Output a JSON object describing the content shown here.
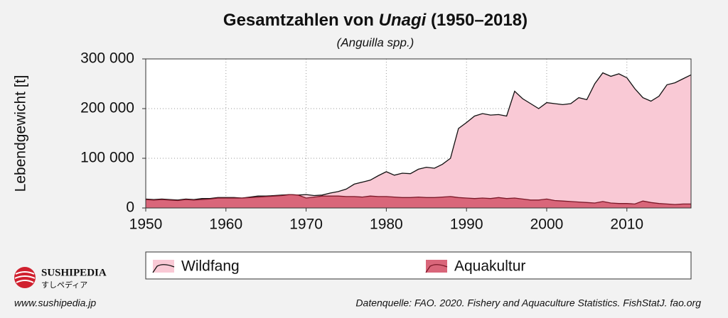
{
  "chart_data": {
    "type": "area",
    "title": [
      "Gesamtzahlen von ",
      "Unagi",
      " (1950–2018)"
    ],
    "subtitle": "(Anguilla spp.)",
    "ylabel": "Lebendgewicht [t]",
    "x": [
      1950,
      1951,
      1952,
      1953,
      1954,
      1955,
      1956,
      1957,
      1958,
      1959,
      1960,
      1961,
      1962,
      1963,
      1964,
      1965,
      1966,
      1967,
      1968,
      1969,
      1970,
      1971,
      1972,
      1973,
      1974,
      1975,
      1976,
      1977,
      1978,
      1979,
      1980,
      1981,
      1982,
      1983,
      1984,
      1985,
      1986,
      1987,
      1988,
      1989,
      1990,
      1991,
      1992,
      1993,
      1994,
      1995,
      1996,
      1997,
      1998,
      1999,
      2000,
      2001,
      2002,
      2003,
      2004,
      2005,
      2006,
      2007,
      2008,
      2009,
      2010,
      2011,
      2012,
      2013,
      2014,
      2015,
      2016,
      2017,
      2018
    ],
    "series": [
      {
        "name": "Wildfang",
        "color": "#f9c9d5",
        "line_color": "#111111",
        "values": [
          18000,
          17000,
          18000,
          17000,
          16000,
          18000,
          17000,
          19000,
          19000,
          21000,
          21000,
          21000,
          20000,
          22000,
          24000,
          24000,
          25000,
          26000,
          27000,
          26000,
          27000,
          25000,
          26000,
          30000,
          33000,
          38000,
          48000,
          52000,
          56000,
          65000,
          73000,
          66000,
          70000,
          69000,
          78000,
          82000,
          80000,
          88000,
          100000,
          160000,
          172000,
          185000,
          190000,
          187000,
          188000,
          185000,
          235000,
          220000,
          210000,
          200000,
          212000,
          210000,
          208000,
          210000,
          222000,
          218000,
          250000,
          272000,
          265000,
          270000,
          262000,
          240000,
          222000,
          215000,
          225000,
          248000,
          252000,
          260000,
          268000
        ]
      },
      {
        "name": "Aquakultur",
        "color": "#d9667a",
        "line_color": "#7a1828",
        "values": [
          17000,
          16000,
          17000,
          16000,
          15000,
          17000,
          16000,
          17000,
          18000,
          20000,
          20000,
          20000,
          20000,
          21000,
          22000,
          23000,
          24000,
          25000,
          27000,
          26000,
          20000,
          22000,
          24000,
          24000,
          24000,
          23000,
          23000,
          22000,
          24000,
          23000,
          23000,
          22000,
          21000,
          21000,
          22000,
          21000,
          21000,
          22000,
          23000,
          21000,
          20000,
          19000,
          20000,
          19000,
          21000,
          19000,
          20000,
          18000,
          16000,
          16000,
          18000,
          15000,
          14000,
          13000,
          12000,
          11000,
          10000,
          13000,
          10000,
          9000,
          9000,
          8000,
          14000,
          11000,
          9000,
          8000,
          7000,
          8000,
          8000
        ]
      }
    ],
    "xlim": [
      1950,
      2018
    ],
    "xticks": [
      1950,
      1960,
      1970,
      1980,
      1990,
      2000,
      2010
    ],
    "ylim": [
      0,
      300000
    ],
    "yticks": [
      {
        "value": 0,
        "label": "0"
      },
      {
        "value": 100000,
        "label": "100 000"
      },
      {
        "value": 200000,
        "label": "200 000"
      },
      {
        "value": 300000,
        "label": "300 000"
      }
    ],
    "grid": true,
    "legend": "bottom"
  },
  "logo": {
    "name": "SUSHIPEDIA",
    "subname": "すしペディア",
    "url": "www.sushipedia.jp"
  },
  "source": "Datenquelle: FAO. 2020. Fishery and Aquaculture Statistics. FishStatJ. fao.org"
}
